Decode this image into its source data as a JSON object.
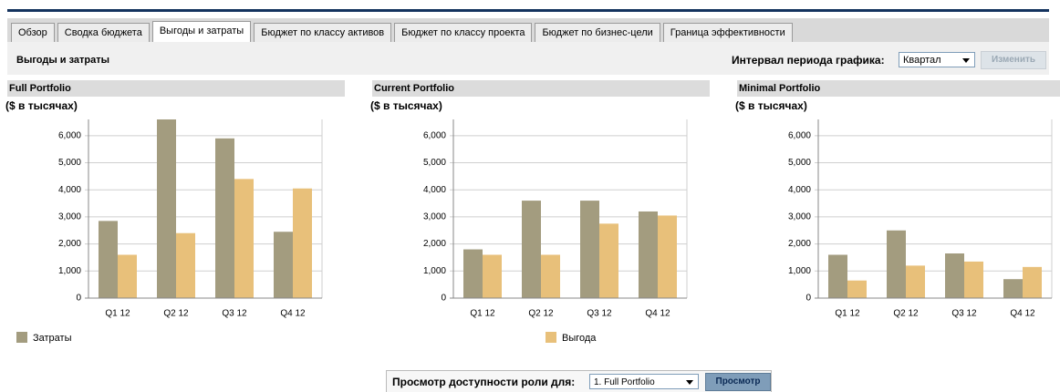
{
  "tabs": [
    "Обзор",
    "Сводка бюджета",
    "Выгоды и затраты",
    "Бюджет по классу активов",
    "Бюджет по классу проекта",
    "Бюджет по бизнес-цели",
    "Граница эффективности"
  ],
  "toolbar": {
    "title": "Выгоды и затраты",
    "interval_label": "Интервал периода графика:",
    "interval_value": "Квартал",
    "apply_button": "Изменить"
  },
  "chart_data": [
    {
      "type": "bar",
      "title": "Full Portfolio",
      "subtitle": "($ в тысячах)",
      "categories": [
        "Q1 12",
        "Q2 12",
        "Q3 12",
        "Q4 12"
      ],
      "series": [
        {
          "name": "Затраты",
          "color": "#a39c7f",
          "values": [
            2850,
            6600,
            5900,
            2450
          ]
        },
        {
          "name": "Выгода",
          "color": "#e8c07a",
          "values": [
            1600,
            2400,
            4400,
            4050
          ]
        }
      ],
      "ylim": [
        0,
        6600
      ],
      "yticks": [
        0,
        {
          "value": 1000,
          "label": "1,000"
        },
        {
          "value": 2000,
          "label": "2,000"
        },
        {
          "value": 3000,
          "label": "3,000"
        },
        {
          "value": 4000,
          "label": "4,000"
        },
        {
          "value": 5000,
          "label": "5,000"
        },
        {
          "value": 6000,
          "label": "6,000"
        }
      ],
      "grid": true
    },
    {
      "type": "bar",
      "title": "Current Portfolio",
      "subtitle": "($ в тысячах)",
      "categories": [
        "Q1 12",
        "Q2 12",
        "Q3 12",
        "Q4 12"
      ],
      "series": [
        {
          "color": "#a39c7f",
          "values": [
            1800,
            3600,
            3600,
            3200
          ]
        },
        {
          "color": "#e8c07a",
          "values": [
            1600,
            1600,
            2750,
            3050
          ]
        }
      ],
      "ylim": [
        0,
        6600
      ],
      "yticks": [
        0,
        {
          "value": 1000,
          "label": "1,000"
        },
        {
          "value": 2000,
          "label": "2,000"
        },
        {
          "value": 3000,
          "label": "3,000"
        },
        {
          "value": 4000,
          "label": "4,000"
        },
        {
          "value": 5000,
          "label": "5,000"
        },
        {
          "value": 6000,
          "label": "6,000"
        }
      ],
      "grid": true
    },
    {
      "type": "bar",
      "title": "Minimal Portfolio",
      "subtitle": "($ в тысячах)",
      "categories": [
        "Q1 12",
        "Q2 12",
        "Q3 12",
        "Q4 12"
      ],
      "series": [
        {
          "color": "#a39c7f",
          "values": [
            1600,
            2500,
            1650,
            700
          ]
        },
        {
          "color": "#e8c07a",
          "values": [
            650,
            1200,
            1350,
            1150
          ]
        }
      ],
      "ylim": [
        0,
        6600
      ],
      "yticks": [
        0,
        {
          "value": 1000,
          "label": "1,000"
        },
        {
          "value": 2000,
          "label": "2,000"
        },
        {
          "value": 3000,
          "label": "3,000"
        },
        {
          "value": 4000,
          "label": "4,000"
        },
        {
          "value": 5000,
          "label": "5,000"
        },
        {
          "value": 6000,
          "label": "6,000"
        }
      ],
      "grid": true
    }
  ],
  "footer": {
    "label": "Просмотр доступности роли для:",
    "portfolio": "1. Full Portfolio",
    "button": "Просмотр"
  }
}
